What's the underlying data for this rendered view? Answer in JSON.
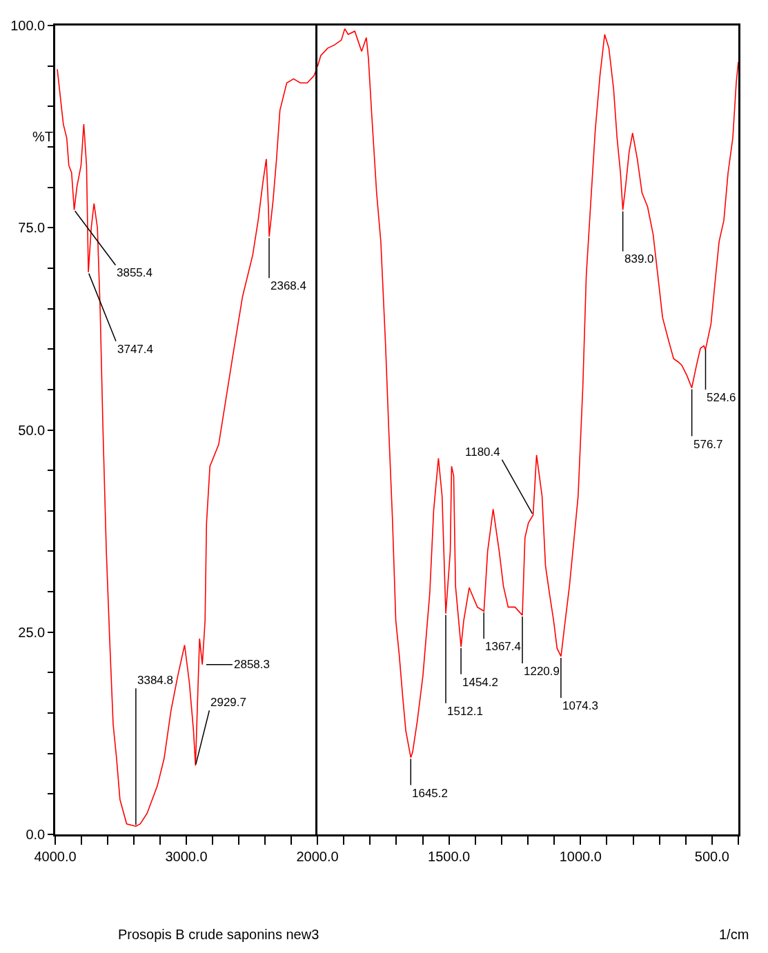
{
  "chart_data": [
    {
      "type": "line",
      "ylabel": "%T",
      "annotations": [
        "Prosopis B crude saponins new3",
        {
          "text": "3855.4",
          "x": 3855.4,
          "y": 77.2
        },
        {
          "text": "3747.4",
          "x": 3747.4,
          "y": 69.5
        },
        {
          "text": "3384.8",
          "x": 3384.8,
          "y": 1.0
        },
        {
          "text": "2929.7",
          "x": 2929.7,
          "y": 8.5
        },
        {
          "text": "2858.3",
          "x": 2858.3,
          "y": 21.0
        },
        {
          "text": "2368.4",
          "x": 2368.4,
          "y": 73.9
        }
      ],
      "x": [
        3984,
        3938,
        3912,
        3896,
        3875,
        3855,
        3834,
        3803,
        3782,
        3761,
        3747,
        3725,
        3704,
        3678,
        3657,
        3636,
        3610,
        3584,
        3558,
        3532,
        3506,
        3455,
        3385,
        3351,
        3299,
        3221,
        3169,
        3117,
        3065,
        3013,
        2977,
        2945,
        2930,
        2899,
        2878,
        2857,
        2846,
        2820,
        2753,
        2649,
        2571,
        2494,
        2452,
        2416,
        2390,
        2374,
        2368,
        2338,
        2312,
        2286,
        2234,
        2182,
        2130,
        2078,
        2026,
        2000
      ],
      "series": [
        {
          "color": "#ff0000",
          "values": [
            94.6,
            87.8,
            86.1,
            82.7,
            81.8,
            77.2,
            80.1,
            82.7,
            87.8,
            82.7,
            69.5,
            75.0,
            78.0,
            75.0,
            64.8,
            50.3,
            35.0,
            23.9,
            13.6,
            9.4,
            4.3,
            1.3,
            1.0,
            1.3,
            2.6,
            6.0,
            9.4,
            15.3,
            19.6,
            23.4,
            18.8,
            12.8,
            8.5,
            24.2,
            21.0,
            26.4,
            38.4,
            45.5,
            48.2,
            58.8,
            66.5,
            71.6,
            75.9,
            80.6,
            83.5,
            77.6,
            73.9,
            78.4,
            83.5,
            89.5,
            92.9,
            93.4,
            92.9,
            92.9,
            93.8,
            94.9
          ]
        }
      ],
      "xlim": [
        4000,
        2000
      ],
      "ylim": [
        0,
        100
      ],
      "xticks": [
        {
          "value": 4000,
          "label": "4000.0"
        },
        {
          "value": 3800,
          "label": null
        },
        {
          "value": 3600,
          "label": null
        },
        {
          "value": 3400,
          "label": null
        },
        {
          "value": 3200,
          "label": null
        },
        {
          "value": 3000,
          "label": "3000.0"
        },
        {
          "value": 2800,
          "label": null
        },
        {
          "value": 2600,
          "label": null
        },
        {
          "value": 2400,
          "label": null
        },
        {
          "value": 2200,
          "label": null
        },
        {
          "value": 2000,
          "label": "2000.0"
        }
      ],
      "yticks": [
        {
          "value": 0,
          "label": "0.0"
        },
        {
          "value": 5,
          "label": null
        },
        {
          "value": 10,
          "label": null
        },
        {
          "value": 15,
          "label": null
        },
        {
          "value": 20,
          "label": null
        },
        {
          "value": 25,
          "label": "25.0"
        },
        {
          "value": 30,
          "label": null
        },
        {
          "value": 35,
          "label": null
        },
        {
          "value": 40,
          "label": null
        },
        {
          "value": 45,
          "label": null
        },
        {
          "value": 50,
          "label": "50.0"
        },
        {
          "value": 55,
          "label": null
        },
        {
          "value": 60,
          "label": null
        },
        {
          "value": 65,
          "label": null
        },
        {
          "value": 70,
          "label": null
        },
        {
          "value": 75,
          "label": "75.0"
        },
        {
          "value": 80,
          "label": null
        },
        {
          "value": 85,
          "label": null
        },
        {
          "value": 90,
          "label": null
        },
        {
          "value": 95,
          "label": null
        },
        {
          "value": 100,
          "label": "100.0"
        }
      ],
      "marker": "none",
      "line_style": "solid"
    },
    {
      "type": "line",
      "xlabel": "1/cm",
      "annotations": [
        {
          "text": "1645.2",
          "x": 1645.2,
          "y": 9.5
        },
        {
          "text": "1512.1",
          "x": 1512.1,
          "y": 27.3
        },
        {
          "text": "1454.2",
          "x": 1454.2,
          "y": 23.2
        },
        {
          "text": "1367.4",
          "x": 1367.4,
          "y": 27.6
        },
        {
          "text": "1220.9",
          "x": 1220.9,
          "y": 27.1
        },
        {
          "text": "1180.4",
          "x": 1180.4,
          "y": 39.5
        },
        {
          "text": "1074.3",
          "x": 1074.3,
          "y": 22.0
        },
        {
          "text": "839.0",
          "x": 839.0,
          "y": 77.2
        },
        {
          "text": "576.7",
          "x": 576.7,
          "y": 55.2
        },
        {
          "text": "524.6",
          "x": 524.6,
          "y": 60.1
        }
      ],
      "x": [
        2000,
        1987,
        1961,
        1935,
        1909,
        1896,
        1883,
        1858,
        1832,
        1814,
        1806,
        1793,
        1775,
        1759,
        1741,
        1728,
        1715,
        1702,
        1689,
        1676,
        1664,
        1645,
        1638,
        1620,
        1599,
        1573,
        1558,
        1540,
        1526,
        1512,
        1495,
        1490,
        1482,
        1475,
        1454,
        1444,
        1423,
        1392,
        1367,
        1353,
        1332,
        1309,
        1293,
        1275,
        1249,
        1221,
        1211,
        1198,
        1180,
        1167,
        1146,
        1133,
        1118,
        1102,
        1089,
        1074,
        1061,
        1042,
        1024,
        1009,
        991,
        978,
        962,
        944,
        926,
        908,
        892,
        874,
        861,
        848,
        839,
        828,
        815,
        802,
        784,
        766,
        745,
        724,
        706,
        688,
        668,
        646,
        628,
        615,
        595,
        577,
        559,
        544,
        531,
        525,
        504,
        486,
        473,
        455,
        439,
        421,
        408,
        400
      ],
      "series": [
        {
          "color": "#ff0000",
          "values": [
            94.9,
            96.3,
            97.2,
            97.6,
            98.2,
            99.6,
            98.9,
            99.3,
            96.8,
            98.5,
            95.9,
            88.7,
            79.3,
            73.3,
            60.5,
            49.4,
            39.2,
            26.4,
            22.2,
            17.1,
            12.8,
            9.5,
            10.2,
            14.1,
            19.6,
            29.8,
            40.1,
            46.5,
            41.8,
            27.3,
            35.0,
            45.5,
            44.3,
            30.7,
            23.2,
            26.4,
            30.5,
            28.1,
            27.6,
            35.0,
            40.2,
            35.0,
            30.7,
            28.1,
            28.1,
            27.1,
            36.7,
            38.5,
            39.5,
            46.9,
            41.8,
            33.2,
            29.8,
            26.4,
            23.0,
            22.0,
            25.6,
            30.7,
            36.7,
            41.8,
            55.4,
            69.1,
            77.6,
            87.0,
            93.8,
            98.9,
            97.2,
            92.1,
            86.1,
            81.8,
            77.2,
            80.3,
            84.4,
            86.7,
            83.5,
            79.3,
            77.6,
            74.2,
            69.1,
            63.9,
            61.4,
            58.8,
            58.4,
            58.0,
            56.7,
            55.2,
            58.0,
            60.1,
            60.4,
            59.9,
            63.1,
            69.1,
            73.3,
            75.9,
            81.8,
            86.1,
            92.9,
            95.5
          ]
        }
      ],
      "xlim": [
        2000,
        400
      ],
      "ylim": [
        0,
        100
      ],
      "xticks": [
        {
          "value": 1900,
          "label": null
        },
        {
          "value": 1800,
          "label": null
        },
        {
          "value": 1700,
          "label": null
        },
        {
          "value": 1600,
          "label": null
        },
        {
          "value": 1500,
          "label": "1500.0"
        },
        {
          "value": 1400,
          "label": null
        },
        {
          "value": 1300,
          "label": null
        },
        {
          "value": 1200,
          "label": null
        },
        {
          "value": 1100,
          "label": null
        },
        {
          "value": 1000,
          "label": "1000.0"
        },
        {
          "value": 900,
          "label": null
        },
        {
          "value": 800,
          "label": null
        },
        {
          "value": 700,
          "label": null
        },
        {
          "value": 600,
          "label": null
        },
        {
          "value": 500,
          "label": "500.0"
        },
        {
          "value": 400,
          "label": null
        }
      ],
      "tick_labels": "x",
      "marker": "none",
      "line_style": "solid"
    }
  ]
}
